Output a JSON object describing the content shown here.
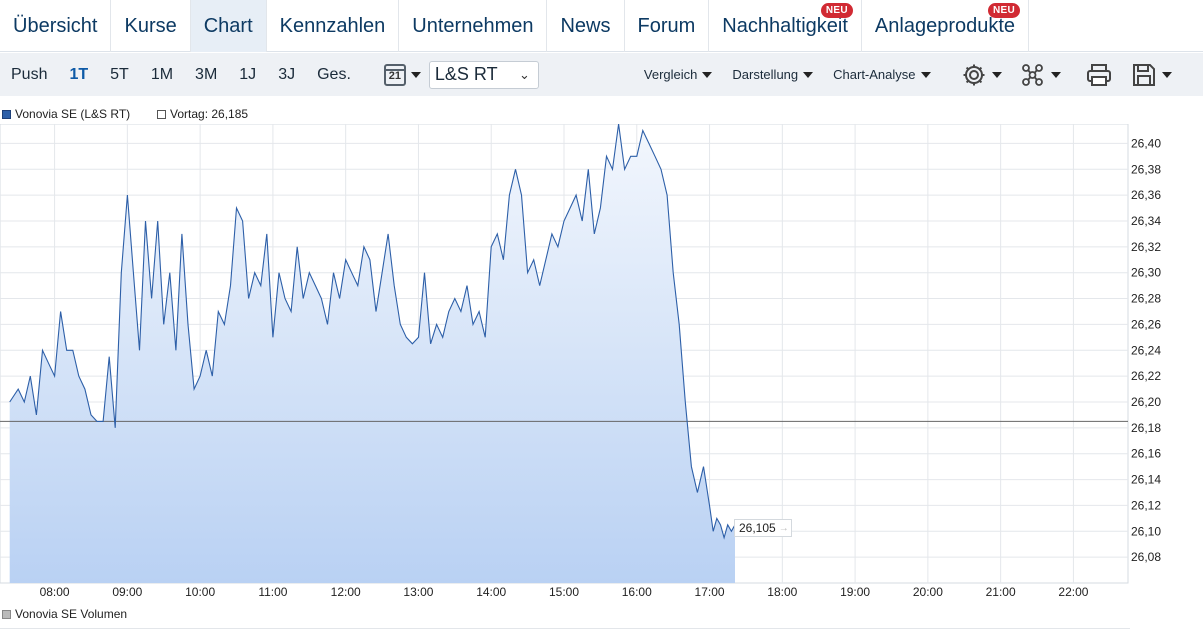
{
  "tabs": [
    {
      "label": "Übersicht"
    },
    {
      "label": "Kurse"
    },
    {
      "label": "Chart"
    },
    {
      "label": "Kennzahlen"
    },
    {
      "label": "Unternehmen"
    },
    {
      "label": "News"
    },
    {
      "label": "Forum"
    },
    {
      "label": "Nachhaltigkeit",
      "badge": "NEU"
    },
    {
      "label": "Anlageprodukte",
      "badge": "NEU"
    }
  ],
  "active_tab": "Chart",
  "periods": [
    "Push",
    "1T",
    "5T",
    "1M",
    "3M",
    "1J",
    "3J",
    "Ges."
  ],
  "active_period": "1T",
  "calendar_day": "21",
  "exchange_select": "L&S RT",
  "menus": {
    "vergleich": "Vergleich",
    "darstellung": "Darstellung",
    "analyse": "Chart-Analyse"
  },
  "icons": [
    "gear-icon",
    "network-icon",
    "print-icon",
    "save-icon"
  ],
  "legend": {
    "series": "Vonovia SE (L&S RT)",
    "prev": "Vortag: 26,185",
    "volume": "Vonovia SE Volumen"
  },
  "last_price_label": "26,105",
  "colors": {
    "accent": "#0d5aa7",
    "line": "#2d5fa8",
    "badge": "#d12a33"
  },
  "chart_data": {
    "type": "area",
    "x_range": [
      "07:15",
      "22:45"
    ],
    "x_ticks": [
      "08:00",
      "09:00",
      "10:00",
      "11:00",
      "12:00",
      "13:00",
      "14:00",
      "15:00",
      "16:00",
      "17:00",
      "18:00",
      "19:00",
      "20:00",
      "21:00",
      "22:00"
    ],
    "ylim": [
      26.06,
      26.415
    ],
    "y_ticks": [
      "26,08",
      "26,10",
      "26,12",
      "26,14",
      "26,16",
      "26,18",
      "26,20",
      "26,22",
      "26,24",
      "26,26",
      "26,28",
      "26,30",
      "26,32",
      "26,34",
      "26,36",
      "26,38",
      "26,40"
    ],
    "previous_close": 26.185,
    "series": [
      {
        "name": "Vonovia SE (L&S RT)",
        "x": [
          "07:23",
          "07:30",
          "07:35",
          "07:40",
          "07:45",
          "07:50",
          "07:55",
          "08:00",
          "08:05",
          "08:10",
          "08:15",
          "08:20",
          "08:25",
          "08:30",
          "08:35",
          "08:40",
          "08:45",
          "08:50",
          "08:55",
          "09:00",
          "09:05",
          "09:10",
          "09:15",
          "09:20",
          "09:25",
          "09:30",
          "09:35",
          "09:40",
          "09:45",
          "09:50",
          "09:55",
          "10:00",
          "10:05",
          "10:10",
          "10:15",
          "10:20",
          "10:25",
          "10:30",
          "10:35",
          "10:40",
          "10:45",
          "10:50",
          "10:55",
          "11:00",
          "11:05",
          "11:10",
          "11:15",
          "11:20",
          "11:25",
          "11:30",
          "11:35",
          "11:40",
          "11:45",
          "11:50",
          "11:55",
          "12:00",
          "12:05",
          "12:10",
          "12:15",
          "12:20",
          "12:25",
          "12:30",
          "12:35",
          "12:40",
          "12:45",
          "12:50",
          "12:55",
          "13:00",
          "13:05",
          "13:10",
          "13:15",
          "13:20",
          "13:25",
          "13:30",
          "13:35",
          "13:40",
          "13:45",
          "13:50",
          "13:55",
          "14:00",
          "14:05",
          "14:10",
          "14:15",
          "14:20",
          "14:25",
          "14:30",
          "14:35",
          "14:40",
          "14:45",
          "14:50",
          "14:55",
          "15:00",
          "15:05",
          "15:10",
          "15:15",
          "15:20",
          "15:25",
          "15:30",
          "15:35",
          "15:40",
          "15:45",
          "15:50",
          "15:55",
          "16:00",
          "16:05",
          "16:10",
          "16:15",
          "16:20",
          "16:25",
          "16:30",
          "16:35",
          "16:40",
          "16:45",
          "16:50",
          "16:55",
          "17:00",
          "17:03",
          "17:06",
          "17:09",
          "17:12",
          "17:15",
          "17:18",
          "17:21"
        ],
        "values": [
          26.2,
          26.21,
          26.2,
          26.22,
          26.19,
          26.24,
          26.23,
          26.22,
          26.27,
          26.24,
          26.24,
          26.22,
          26.21,
          26.19,
          26.185,
          26.185,
          26.235,
          26.18,
          26.3,
          26.36,
          26.3,
          26.24,
          26.34,
          26.28,
          26.34,
          26.26,
          26.3,
          26.24,
          26.33,
          26.26,
          26.21,
          26.22,
          26.24,
          26.22,
          26.27,
          26.26,
          26.29,
          26.35,
          26.34,
          26.28,
          26.3,
          26.29,
          26.33,
          26.25,
          26.3,
          26.28,
          26.27,
          26.32,
          26.28,
          26.3,
          26.29,
          26.28,
          26.26,
          26.3,
          26.28,
          26.31,
          26.3,
          26.29,
          26.32,
          26.31,
          26.27,
          26.3,
          26.33,
          26.29,
          26.26,
          26.25,
          26.245,
          26.25,
          26.3,
          26.245,
          26.26,
          26.25,
          26.27,
          26.28,
          26.27,
          26.29,
          26.26,
          26.27,
          26.25,
          26.32,
          26.33,
          26.31,
          26.36,
          26.38,
          26.36,
          26.3,
          26.31,
          26.29,
          26.31,
          26.33,
          26.32,
          26.34,
          26.35,
          26.36,
          26.34,
          26.38,
          26.33,
          26.35,
          26.39,
          26.38,
          26.415,
          26.38,
          26.39,
          26.39,
          26.41,
          26.4,
          26.39,
          26.38,
          26.36,
          26.3,
          26.26,
          26.2,
          26.15,
          26.13,
          26.15,
          26.12,
          26.1,
          26.11,
          26.105,
          26.095,
          26.105,
          26.1,
          26.105
        ]
      }
    ]
  }
}
